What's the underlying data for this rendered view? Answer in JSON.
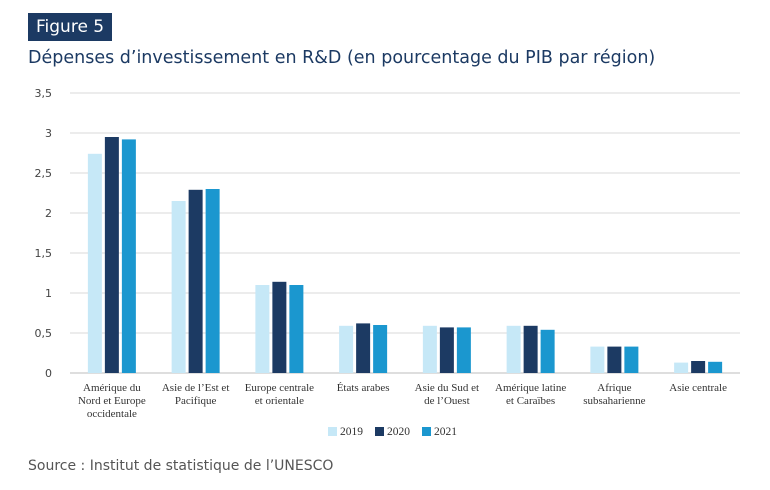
{
  "figure_label": "Figure 5",
  "title": "Dépenses d’investissement en R&D (en pourcentage du PIB par région)",
  "source": "Source : Institut de statistique de l’UNESCO",
  "colors": {
    "badge_bg": "#1c3a63",
    "title": "#1c3a63",
    "series": [
      "#c6e8f7",
      "#1c3a63",
      "#1b97cf"
    ]
  },
  "chart_data": {
    "type": "bar",
    "categories": [
      [
        "Amérique du",
        "Nord et Europe",
        "occidentale"
      ],
      [
        "Asie de l’Est et",
        "Pacifique"
      ],
      [
        "Europe centrale",
        "et orientale"
      ],
      [
        "États arabes"
      ],
      [
        "Asie du Sud et",
        "de l’Ouest"
      ],
      [
        "Amérique latine",
        "et Caraïbes"
      ],
      [
        "Afrique",
        "subsaharienne"
      ],
      [
        "Asie centrale"
      ]
    ],
    "series": [
      {
        "name": "2019",
        "values": [
          2.74,
          2.15,
          1.1,
          0.59,
          0.59,
          0.59,
          0.33,
          0.13
        ]
      },
      {
        "name": "2020",
        "values": [
          2.95,
          2.29,
          1.14,
          0.62,
          0.57,
          0.59,
          0.33,
          0.15
        ]
      },
      {
        "name": "2021",
        "values": [
          2.92,
          2.3,
          1.1,
          0.6,
          0.57,
          0.54,
          0.33,
          0.14
        ]
      }
    ],
    "yticks": [
      "0",
      "0,5",
      "1",
      "1,5",
      "2",
      "2,5",
      "3",
      "3,5"
    ],
    "ylim": [
      0,
      3.5
    ],
    "grid": true,
    "legend": "bottom-center"
  }
}
